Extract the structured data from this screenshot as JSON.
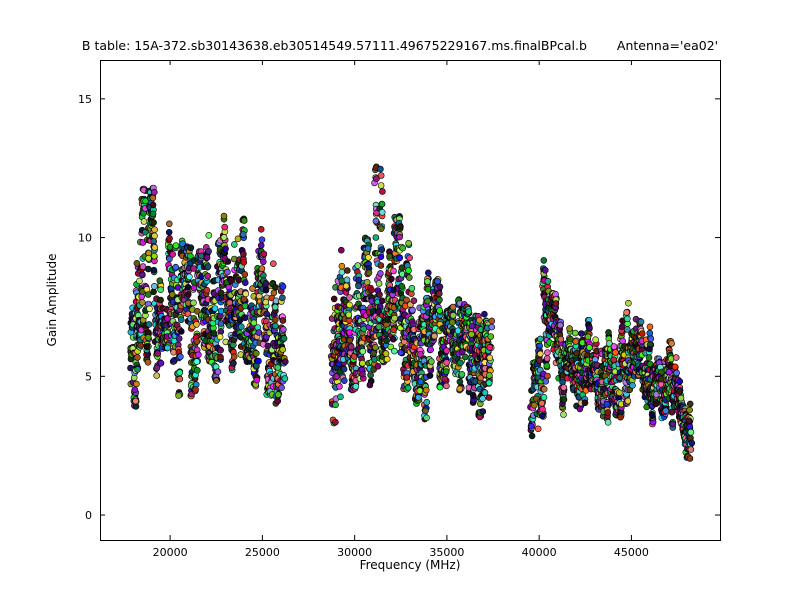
{
  "figure": {
    "background_color": "#ffffff",
    "axes_color": "#000000"
  },
  "chart_data": {
    "type": "scatter",
    "title": "B table: 15A-372.sb30143638.eb30514549.57111.49675229167.ms.finalBPcal.b",
    "annotation": "Antenna='ea02'",
    "xlabel": "Frequency (MHz)",
    "ylabel": "Gain Amplitude",
    "xlim": [
      16200,
      49800
    ],
    "ylim": [
      -0.9,
      16.4
    ],
    "xticks": [
      20000,
      25000,
      30000,
      35000,
      40000,
      45000
    ],
    "yticks": [
      0,
      5,
      10,
      15
    ],
    "grid": false,
    "legend": "none",
    "marker": {
      "shape": "circle",
      "edge_color": "#000000",
      "radius_px": 3,
      "fill": "multicolor-per-channel"
    },
    "note": "Bandpass gain-amplitude solutions vs frequency. Each vertical strip is one spectral window of multicolored channel points. Values estimated from axes: spws given as [center_MHz, amp_min, amp_max].",
    "points_per_spw": 60,
    "spw_span_mhz": 380,
    "bands": [
      {
        "name": "band-1",
        "freq_range_mhz": [
          17850,
          26300
        ],
        "spws": [
          [
            18050,
            3.9,
            10.4
          ],
          [
            18350,
            6.0,
            12.1
          ],
          [
            18650,
            5.5,
            11.9
          ],
          [
            19000,
            6.5,
            11.8
          ],
          [
            19350,
            5.0,
            10.8
          ],
          [
            19700,
            6.0,
            11.0
          ],
          [
            20100,
            5.5,
            10.5
          ],
          [
            20500,
            4.3,
            10.0
          ],
          [
            20900,
            6.0,
            9.7
          ],
          [
            21300,
            4.2,
            9.8
          ],
          [
            21700,
            5.0,
            9.5
          ],
          [
            22100,
            5.5,
            10.2
          ],
          [
            22500,
            4.8,
            11.3
          ],
          [
            22900,
            5.6,
            10.9
          ],
          [
            23300,
            5.2,
            9.8
          ],
          [
            23700,
            4.9,
            10.3
          ],
          [
            24100,
            5.5,
            10.8
          ],
          [
            24500,
            4.5,
            9.6
          ],
          [
            24900,
            4.7,
            10.7
          ],
          [
            25300,
            4.3,
            9.3
          ],
          [
            25700,
            4.0,
            10.6
          ],
          [
            26000,
            4.0,
            8.4
          ]
        ]
      },
      {
        "name": "band-2",
        "freq_range_mhz": [
          28750,
          37400
        ],
        "spws": [
          [
            28950,
            3.2,
            9.4
          ],
          [
            29250,
            4.0,
            12.2
          ],
          [
            29550,
            5.5,
            11.0
          ],
          [
            29900,
            4.5,
            9.8
          ],
          [
            30250,
            3.5,
            9.0
          ],
          [
            30600,
            5.0,
            10.0
          ],
          [
            30950,
            4.5,
            9.5
          ],
          [
            31300,
            4.0,
            12.6
          ],
          [
            31650,
            5.5,
            10.5
          ],
          [
            32000,
            4.5,
            9.5
          ],
          [
            32350,
            3.8,
            10.8
          ],
          [
            32700,
            4.5,
            11.2
          ],
          [
            33050,
            5.0,
            10.0
          ],
          [
            33400,
            4.0,
            11.0
          ],
          [
            33750,
            3.4,
            9.0
          ],
          [
            34100,
            5.0,
            9.0
          ],
          [
            34450,
            4.5,
            8.5
          ],
          [
            34800,
            4.6,
            8.0
          ],
          [
            35150,
            4.5,
            7.5
          ],
          [
            35500,
            4.6,
            7.8
          ],
          [
            35850,
            4.5,
            7.6
          ],
          [
            36200,
            4.4,
            7.5
          ],
          [
            36550,
            3.5,
            7.2
          ],
          [
            36900,
            3.4,
            7.6
          ],
          [
            37200,
            3.3,
            7.0
          ]
        ]
      },
      {
        "name": "band-3",
        "freq_range_mhz": [
          39600,
          48250
        ],
        "spws": [
          [
            39750,
            2.2,
            5.5
          ],
          [
            40050,
            3.5,
            7.0
          ],
          [
            40400,
            4.0,
            9.2
          ],
          [
            40750,
            4.5,
            8.0
          ],
          [
            41100,
            3.5,
            7.0
          ],
          [
            41450,
            4.0,
            6.5
          ],
          [
            41800,
            4.5,
            7.0
          ],
          [
            42150,
            3.5,
            6.8
          ],
          [
            42500,
            4.0,
            7.2
          ],
          [
            42850,
            4.5,
            7.0
          ],
          [
            43200,
            3.8,
            6.5
          ],
          [
            43550,
            3.0,
            6.0
          ],
          [
            43900,
            4.0,
            7.5
          ],
          [
            44250,
            3.5,
            6.5
          ],
          [
            44600,
            4.0,
            7.0
          ],
          [
            44950,
            4.5,
            8.2
          ],
          [
            45300,
            5.0,
            8.3
          ],
          [
            45650,
            4.0,
            7.0
          ],
          [
            46000,
            3.2,
            6.8
          ],
          [
            46350,
            4.0,
            6.6
          ],
          [
            46700,
            3.5,
            6.0
          ],
          [
            47050,
            3.0,
            6.3
          ],
          [
            47400,
            3.5,
            6.0
          ],
          [
            47750,
            2.8,
            5.5
          ],
          [
            48050,
            1.8,
            5.0
          ]
        ]
      }
    ]
  }
}
